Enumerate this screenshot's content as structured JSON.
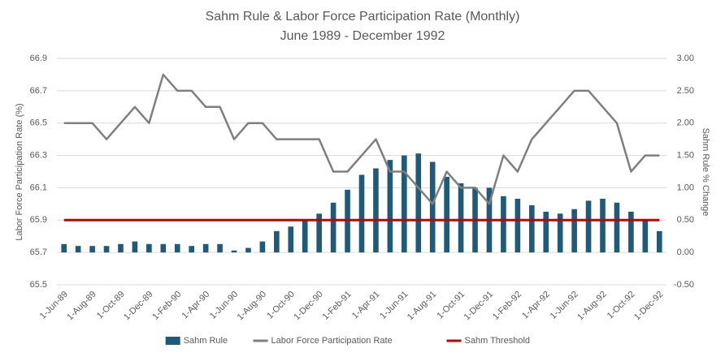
{
  "chart_data": {
    "type": "combo",
    "title": "Sahm Rule & Labor Force Participation Rate (Monthly)",
    "subtitle": "June 1989 - December 1992",
    "y_label": "Labor Force Participation Rate (%)",
    "y2_label": "Sahm Rule % Change",
    "categories": [
      "1-Jun-89",
      null,
      "1-Aug-89",
      null,
      "1-Oct-89",
      null,
      "1-Dec-89",
      null,
      "1-Feb-90",
      null,
      "1-Apr-90",
      null,
      "1-Jun-90",
      null,
      "1-Aug-90",
      null,
      "1-Oct-90",
      null,
      "1-Dec-90",
      null,
      "1-Feb-91",
      null,
      "1-Apr-91",
      null,
      "1-Jun-91",
      null,
      "1-Aug-91",
      null,
      "1-Oct-91",
      null,
      "1-Dec-91",
      null,
      "1-Feb-92",
      null,
      "1-Apr-92",
      null,
      "1-Jun-92",
      null,
      "1-Aug-92",
      null,
      "1-Oct-92",
      null,
      "1-Dec-92"
    ],
    "ylim": [
      65.5,
      66.9
    ],
    "yticks": [
      65.5,
      65.7,
      65.9,
      66.1,
      66.3,
      66.5,
      66.7,
      66.9
    ],
    "y2lim": [
      -0.5,
      3.0
    ],
    "y2ticks": [
      {
        "value": -0.5,
        "label": "-0.50"
      },
      {
        "value": 0,
        "label": "0.00"
      },
      {
        "value": 0.5,
        "label": "0.50"
      },
      {
        "value": 1.0,
        "label": "1.00"
      },
      {
        "value": 1.5,
        "label": "1.50"
      },
      {
        "value": 2.0,
        "label": "2.00"
      },
      {
        "value": 2.5,
        "label": "2.50"
      },
      {
        "value": 3.0,
        "label": "3.00"
      }
    ],
    "grid": true,
    "legend": "bottom",
    "series": [
      {
        "name": "Sahm Rule",
        "type": "bar",
        "axis": "y2",
        "color": "#1f5b78",
        "values": [
          0.13,
          0.1,
          0.1,
          0.1,
          0.13,
          0.17,
          0.13,
          0.13,
          0.13,
          0.1,
          0.13,
          0.13,
          0.03,
          0.07,
          0.17,
          0.33,
          0.4,
          0.5,
          0.6,
          0.77,
          0.97,
          1.2,
          1.3,
          1.43,
          1.5,
          1.53,
          1.4,
          1.17,
          1.07,
          1.0,
          1.0,
          0.87,
          0.83,
          0.73,
          0.63,
          0.6,
          0.67,
          0.8,
          0.83,
          0.77,
          0.63,
          0.5,
          0.33
        ]
      },
      {
        "name": "Labor Force Participation Rate",
        "type": "line",
        "color": "#7f7f7f",
        "values": [
          66.5,
          66.5,
          66.5,
          66.4,
          66.5,
          66.6,
          66.5,
          66.8,
          66.7,
          66.7,
          66.6,
          66.6,
          66.4,
          66.5,
          66.5,
          66.4,
          66.4,
          66.4,
          66.4,
          66.2,
          66.2,
          66.3,
          66.4,
          66.2,
          66.2,
          66.1,
          66.0,
          66.2,
          66.1,
          66.1,
          66.0,
          66.3,
          66.2,
          66.4,
          66.5,
          66.6,
          66.7,
          66.7,
          66.6,
          66.5,
          66.2,
          66.3,
          66.3
        ]
      },
      {
        "name": "Sahm Threshold",
        "type": "line",
        "axis": "y2",
        "color": "#c00000",
        "values": [
          0.5,
          0.5,
          0.5,
          0.5,
          0.5,
          0.5,
          0.5,
          0.5,
          0.5,
          0.5,
          0.5,
          0.5,
          0.5,
          0.5,
          0.5,
          0.5,
          0.5,
          0.5,
          0.5,
          0.5,
          0.5,
          0.5,
          0.5,
          0.5,
          0.5,
          0.5,
          0.5,
          0.5,
          0.5,
          0.5,
          0.5,
          0.5,
          0.5,
          0.5,
          0.5,
          0.5,
          0.5,
          0.5,
          0.5,
          0.5,
          0.5,
          0.5,
          0.5
        ]
      }
    ]
  }
}
